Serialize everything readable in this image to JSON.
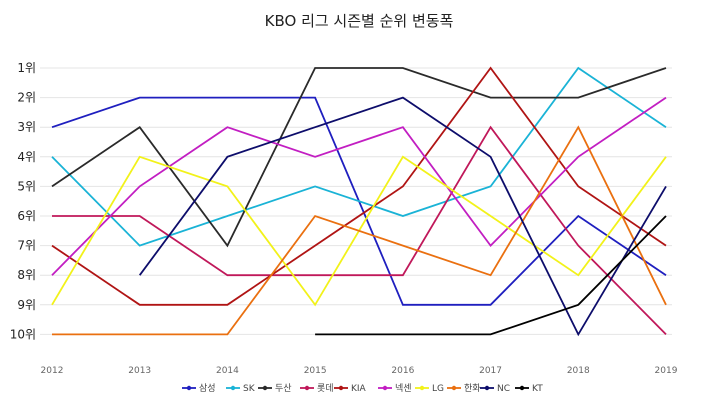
{
  "chart_data": {
    "type": "line",
    "title": "KBO 리그 시즌별 순위 변동폭",
    "xlabel": "",
    "ylabel": "",
    "x": [
      2012,
      2013,
      2014,
      2015,
      2016,
      2017,
      2018,
      2019
    ],
    "y_ticks": [
      "1위",
      "2위",
      "3위",
      "4위",
      "5위",
      "6위",
      "7위",
      "8위",
      "9위",
      "10위"
    ],
    "ylim": [
      1,
      10
    ],
    "y_inverted": true,
    "grid": true,
    "legend_position": "bottom",
    "series": [
      {
        "name": "삼성",
        "color": "#1f1fbf",
        "values": [
          3,
          2,
          2,
          2,
          9,
          9,
          6,
          8
        ]
      },
      {
        "name": "SK",
        "color": "#1ab3d6",
        "values": [
          4,
          7,
          6,
          5,
          6,
          5,
          1,
          3
        ]
      },
      {
        "name": "두산",
        "color": "#2a2a2a",
        "values": [
          5,
          3,
          7,
          1,
          1,
          2,
          2,
          1
        ]
      },
      {
        "name": "롯데",
        "color": "#c0185a",
        "values": [
          6,
          6,
          8,
          8,
          8,
          3,
          7,
          10
        ]
      },
      {
        "name": "KIA",
        "color": "#b01414",
        "values": [
          7,
          9,
          9,
          7,
          5,
          1,
          5,
          7
        ]
      },
      {
        "name": "넥센",
        "color": "#c21ec2",
        "values": [
          8,
          5,
          3,
          4,
          3,
          7,
          4,
          2
        ]
      },
      {
        "name": "LG",
        "color": "#f2f21a",
        "values": [
          9,
          4,
          5,
          9,
          4,
          6,
          8,
          4
        ]
      },
      {
        "name": "한화",
        "color": "#ea7010",
        "values": [
          10,
          10,
          10,
          6,
          7,
          8,
          3,
          9
        ]
      },
      {
        "name": "NC",
        "color": "#0d0d6b",
        "values": [
          null,
          8,
          4,
          3,
          2,
          4,
          10,
          5
        ]
      },
      {
        "name": "KT",
        "color": "#000000",
        "values": [
          null,
          null,
          null,
          10,
          10,
          10,
          9,
          6
        ]
      }
    ]
  }
}
